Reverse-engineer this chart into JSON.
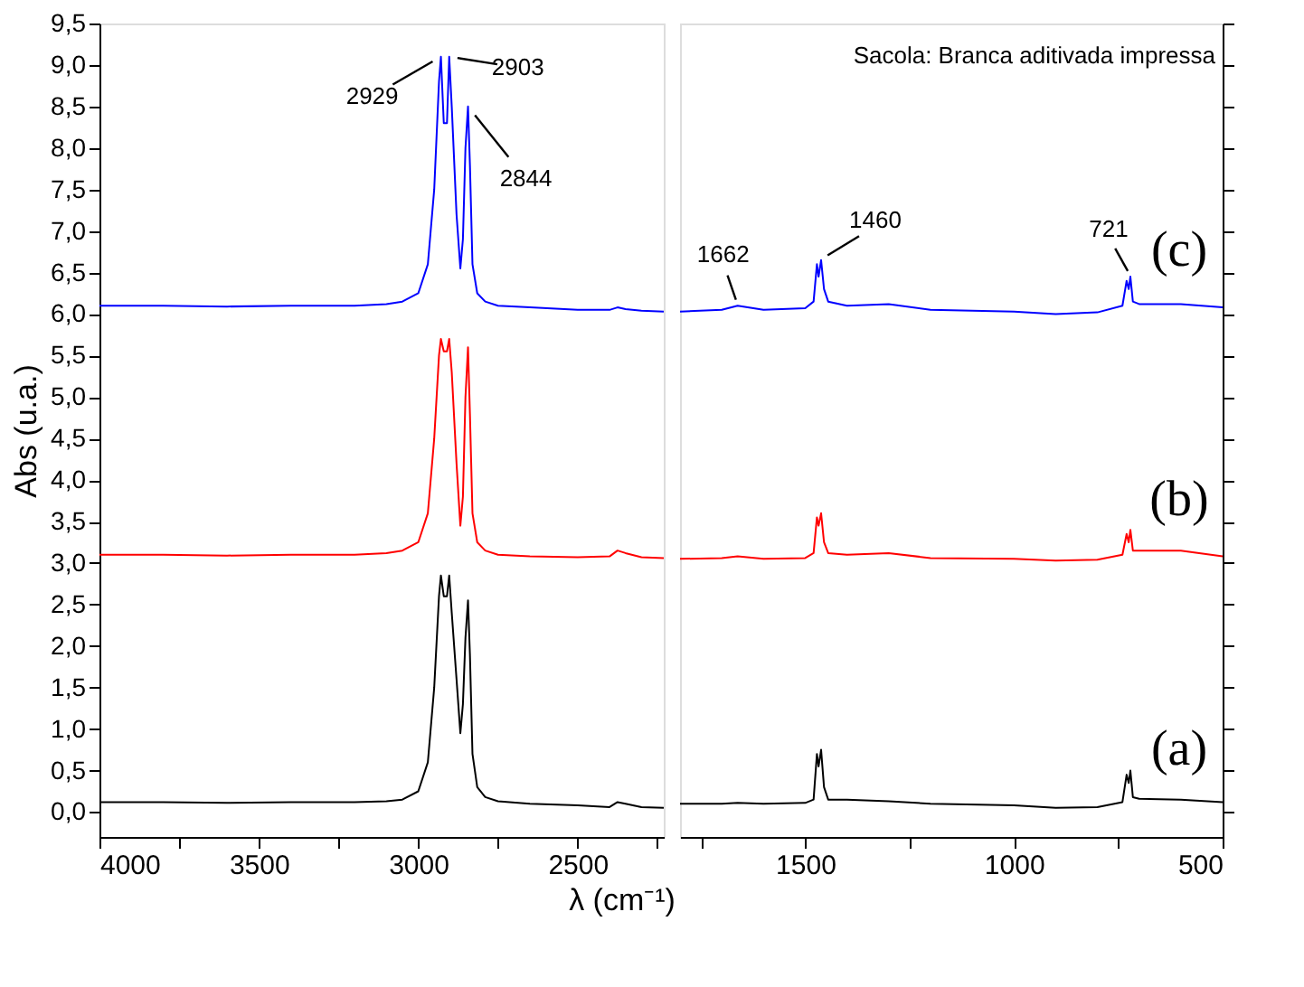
{
  "chart_data": [
    {
      "type": "line",
      "xlabel": "λ (cm⁻¹)",
      "ylabel": "Abs (u.a.)",
      "grid": false,
      "xlim": [
        4000,
        2230
      ],
      "xticks": [
        4000,
        {
          "value": 3750,
          "label": null
        },
        3500,
        {
          "value": 3250,
          "label": null
        },
        3000,
        {
          "value": 2750,
          "label": null
        },
        2500,
        {
          "value": 2250,
          "label": null
        }
      ],
      "ylim": [
        -0.3,
        9.5
      ],
      "yticks": [
        {
          "value": 0,
          "label": "0,0"
        },
        {
          "value": 0.5,
          "label": "0,5"
        },
        {
          "value": 1,
          "label": "1,0"
        },
        {
          "value": 1.5,
          "label": "1,5"
        },
        {
          "value": 2,
          "label": "2,0"
        },
        {
          "value": 2.5,
          "label": "2,5"
        },
        {
          "value": 3,
          "label": "3,0"
        },
        {
          "value": 3.5,
          "label": "3,5"
        },
        {
          "value": 4,
          "label": "4,0"
        },
        {
          "value": 4.5,
          "label": "4,5"
        },
        {
          "value": 5,
          "label": "5,0"
        },
        {
          "value": 5.5,
          "label": "5,5"
        },
        {
          "value": 6,
          "label": "6,0"
        },
        {
          "value": 6.5,
          "label": "6,5"
        },
        {
          "value": 7,
          "label": "7,0"
        },
        {
          "value": 7.5,
          "label": "7,5"
        },
        {
          "value": 8,
          "label": "8,0"
        },
        {
          "value": 8.5,
          "label": "8,5"
        },
        {
          "value": 9,
          "label": "9,0"
        },
        {
          "value": 9.5,
          "label": "9,5"
        }
      ],
      "series": [
        {
          "color": "#0000ff",
          "x": [
            4000,
            3800,
            3600,
            3400,
            3200,
            3100,
            3050,
            3000,
            2970,
            2950,
            2935,
            2929,
            2920,
            2910,
            2903,
            2895,
            2880,
            2868,
            2860,
            2852,
            2844,
            2838,
            2830,
            2815,
            2790,
            2750,
            2650,
            2500,
            2400,
            2375,
            2350,
            2300,
            2230
          ],
          "values": [
            6.1,
            6.1,
            6.09,
            6.1,
            6.1,
            6.12,
            6.15,
            6.25,
            6.6,
            7.5,
            8.8,
            9.1,
            8.3,
            8.3,
            9.1,
            8.5,
            7.2,
            6.55,
            6.9,
            8.0,
            8.5,
            7.8,
            6.6,
            6.25,
            6.15,
            6.1,
            6.08,
            6.05,
            6.05,
            6.08,
            6.06,
            6.04,
            6.03
          ]
        },
        {
          "color": "#ff0000",
          "x": [
            4000,
            3800,
            3600,
            3400,
            3200,
            3100,
            3050,
            3000,
            2970,
            2950,
            2935,
            2929,
            2920,
            2910,
            2903,
            2895,
            2880,
            2868,
            2860,
            2852,
            2844,
            2838,
            2830,
            2815,
            2790,
            2750,
            2650,
            2500,
            2400,
            2375,
            2350,
            2300,
            2230
          ],
          "values": [
            3.1,
            3.1,
            3.09,
            3.1,
            3.1,
            3.12,
            3.15,
            3.25,
            3.6,
            4.5,
            5.5,
            5.7,
            5.55,
            5.55,
            5.7,
            5.3,
            4.2,
            3.45,
            3.8,
            5.0,
            5.6,
            4.8,
            3.6,
            3.25,
            3.15,
            3.1,
            3.08,
            3.07,
            3.08,
            3.15,
            3.12,
            3.07,
            3.06
          ]
        },
        {
          "color": "#000000",
          "x": [
            4000,
            3800,
            3600,
            3400,
            3200,
            3100,
            3050,
            3000,
            2970,
            2950,
            2935,
            2929,
            2920,
            2910,
            2903,
            2895,
            2880,
            2868,
            2860,
            2852,
            2844,
            2838,
            2830,
            2815,
            2790,
            2750,
            2650,
            2500,
            2400,
            2375,
            2350,
            2300,
            2230
          ],
          "values": [
            0.12,
            0.12,
            0.11,
            0.12,
            0.12,
            0.13,
            0.15,
            0.25,
            0.6,
            1.5,
            2.6,
            2.85,
            2.6,
            2.6,
            2.85,
            2.4,
            1.6,
            0.95,
            1.3,
            2.1,
            2.55,
            1.9,
            0.7,
            0.3,
            0.18,
            0.13,
            0.1,
            0.08,
            0.06,
            0.12,
            0.1,
            0.06,
            0.05
          ]
        }
      ],
      "annotations": [
        {
          "text": "2929",
          "x": 2929,
          "y": 9.1
        },
        {
          "text": "2903",
          "x": 2903,
          "y": 9.1
        },
        {
          "text": "2844",
          "x": 2844,
          "y": 8.5
        }
      ]
    },
    {
      "type": "line",
      "grid": false,
      "tick_labels": "x",
      "xlim": [
        1800,
        500
      ],
      "xticks": [
        {
          "value": 1750,
          "label": null
        },
        1500,
        {
          "value": 1250,
          "label": null
        },
        1000,
        {
          "value": 750,
          "label": null
        },
        500
      ],
      "ylim": [
        -0.3,
        9.5
      ],
      "yticks": [
        0,
        0.5,
        1,
        1.5,
        2,
        2.5,
        3,
        3.5,
        4,
        4.5,
        5,
        5.5,
        6,
        6.5,
        7,
        7.5,
        8,
        8.5,
        9,
        9.5
      ],
      "series": [
        {
          "color": "#0000ff",
          "x": [
            1800,
            1700,
            1662,
            1600,
            1500,
            1480,
            1472,
            1468,
            1462,
            1455,
            1445,
            1400,
            1300,
            1200,
            1000,
            900,
            800,
            740,
            730,
            725,
            721,
            715,
            700,
            600,
            500
          ],
          "values": [
            6.03,
            6.05,
            6.1,
            6.05,
            6.07,
            6.15,
            6.6,
            6.45,
            6.65,
            6.3,
            6.15,
            6.1,
            6.12,
            6.05,
            6.03,
            6.0,
            6.02,
            6.1,
            6.4,
            6.3,
            6.45,
            6.15,
            6.12,
            6.12,
            6.08
          ]
        },
        {
          "color": "#ff0000",
          "x": [
            1800,
            1700,
            1662,
            1600,
            1500,
            1480,
            1472,
            1468,
            1462,
            1455,
            1445,
            1400,
            1300,
            1200,
            1000,
            900,
            800,
            740,
            730,
            725,
            721,
            715,
            700,
            600,
            500
          ],
          "values": [
            3.05,
            3.06,
            3.08,
            3.05,
            3.06,
            3.12,
            3.55,
            3.45,
            3.6,
            3.25,
            3.12,
            3.1,
            3.12,
            3.06,
            3.05,
            3.03,
            3.04,
            3.1,
            3.35,
            3.25,
            3.4,
            3.15,
            3.15,
            3.15,
            3.08
          ]
        },
        {
          "color": "#000000",
          "x": [
            1800,
            1700,
            1662,
            1600,
            1500,
            1480,
            1472,
            1468,
            1462,
            1455,
            1445,
            1400,
            1300,
            1200,
            1000,
            900,
            800,
            740,
            730,
            725,
            721,
            715,
            700,
            600,
            500
          ],
          "values": [
            0.1,
            0.1,
            0.11,
            0.1,
            0.11,
            0.15,
            0.7,
            0.55,
            0.75,
            0.3,
            0.15,
            0.15,
            0.13,
            0.1,
            0.08,
            0.05,
            0.06,
            0.12,
            0.45,
            0.35,
            0.5,
            0.18,
            0.16,
            0.15,
            0.12
          ]
        }
      ],
      "annotations": [
        {
          "text": "1662",
          "x": 1662,
          "y": 6.1
        },
        {
          "text": "1460",
          "x": 1462,
          "y": 6.65
        },
        {
          "text": "721",
          "x": 721,
          "y": 6.45
        },
        "Sacola: Branca aditivada impressa",
        "(c)",
        "(b)",
        "(a)"
      ]
    }
  ]
}
